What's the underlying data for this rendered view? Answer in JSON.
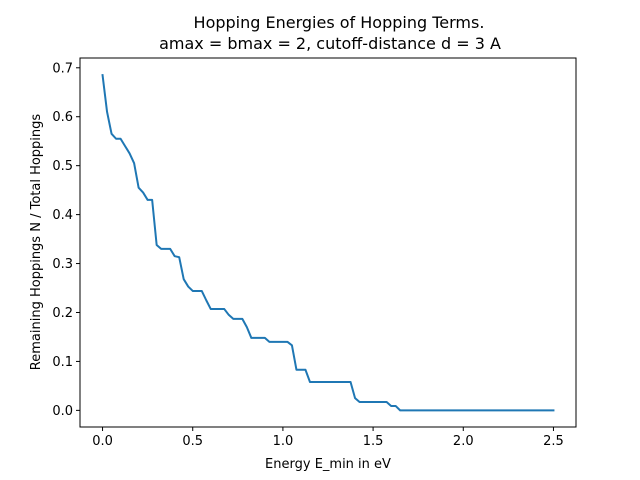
{
  "chart_data": {
    "type": "line",
    "title_lines": [
      "Hopping Energies of Hopping Terms.",
      "amax = bmax = 2, cutoff-distance d = 3 A"
    ],
    "xlabel": "Energy E_min in eV",
    "ylabel": "Remaining Hoppings N / Total Hoppings",
    "xlim": [
      -0.125,
      2.625
    ],
    "ylim": [
      -0.034,
      0.72
    ],
    "xticks": [
      0.0,
      0.5,
      1.0,
      1.5,
      2.0,
      2.5
    ],
    "xtick_labels": [
      "0.0",
      "0.5",
      "1.0",
      "1.5",
      "2.0",
      "2.5"
    ],
    "yticks": [
      0.0,
      0.1,
      0.2,
      0.3,
      0.4,
      0.5,
      0.6,
      0.7
    ],
    "ytick_labels": [
      "0.0",
      "0.1",
      "0.2",
      "0.3",
      "0.4",
      "0.5",
      "0.6",
      "0.7"
    ],
    "grid": false,
    "line_color": "#1f77b4",
    "series": [
      {
        "x": [
          0.0,
          0.025,
          0.05,
          0.075,
          0.1,
          0.125,
          0.15,
          0.175,
          0.2,
          0.225,
          0.25,
          0.275,
          0.3,
          0.325,
          0.35,
          0.375,
          0.4,
          0.425,
          0.45,
          0.475,
          0.5,
          0.55,
          0.575,
          0.6,
          0.625,
          0.675,
          0.7,
          0.725,
          0.75,
          0.775,
          0.8,
          0.825,
          0.875,
          0.9,
          0.925,
          1.025,
          1.05,
          1.075,
          1.125,
          1.15,
          1.175,
          1.375,
          1.4,
          1.425,
          1.45,
          1.575,
          1.6,
          1.625,
          1.65,
          1.675,
          2.5
        ],
        "y": [
          0.685,
          0.61,
          0.565,
          0.555,
          0.555,
          0.54,
          0.525,
          0.505,
          0.455,
          0.445,
          0.43,
          0.43,
          0.338,
          0.33,
          0.33,
          0.33,
          0.315,
          0.313,
          0.268,
          0.253,
          0.244,
          0.244,
          0.225,
          0.207,
          0.207,
          0.207,
          0.195,
          0.187,
          0.187,
          0.187,
          0.17,
          0.148,
          0.148,
          0.148,
          0.14,
          0.14,
          0.133,
          0.083,
          0.083,
          0.058,
          0.058,
          0.058,
          0.025,
          0.017,
          0.017,
          0.017,
          0.009,
          0.009,
          0.0,
          0.0,
          0.0
        ]
      }
    ]
  }
}
